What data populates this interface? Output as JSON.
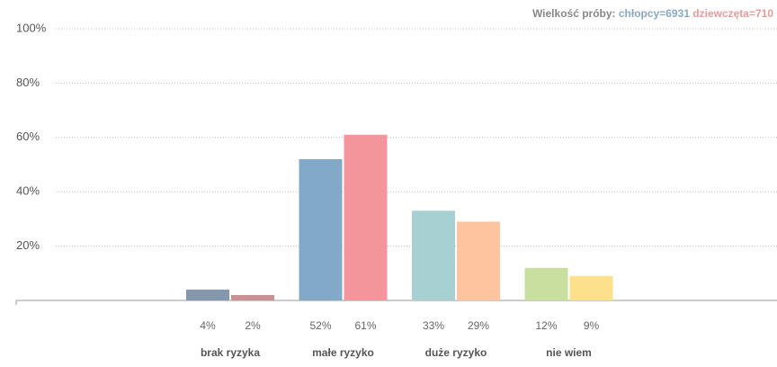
{
  "chart_data": {
    "type": "bar",
    "sample": {
      "label": "Wielkość próby:",
      "boys": "chłopcy=6931",
      "girls": "dziewczęta=710"
    },
    "categories": [
      "brak ryzyka",
      "małe ryzyko",
      "duże ryzyko",
      "nie wiem"
    ],
    "series": [
      {
        "name": "chłopcy",
        "color": "#8aa7c4",
        "colors": [
          "#8497ac",
          "#82a9c7",
          "#a7d0d3",
          "#c8df9f"
        ],
        "values": [
          4,
          52,
          33,
          12
        ],
        "value_labels": [
          "4%",
          "52%",
          "33%",
          "12%"
        ]
      },
      {
        "name": "dziewczęta",
        "color": "#e99a9a",
        "colors": [
          "#c99292",
          "#f4959c",
          "#fec39f",
          "#fde08c"
        ],
        "values": [
          2,
          61,
          29,
          9
        ],
        "value_labels": [
          "2%",
          "61%",
          "29%",
          "9%"
        ]
      }
    ],
    "ylim": [
      0,
      100
    ],
    "yticks": [
      {
        "value": 20,
        "label": "20%"
      },
      {
        "value": 40,
        "label": "40%"
      },
      {
        "value": 60,
        "label": "60%"
      },
      {
        "value": 80,
        "label": "80%"
      },
      {
        "value": 100,
        "label": "100%"
      }
    ],
    "grid": true
  }
}
